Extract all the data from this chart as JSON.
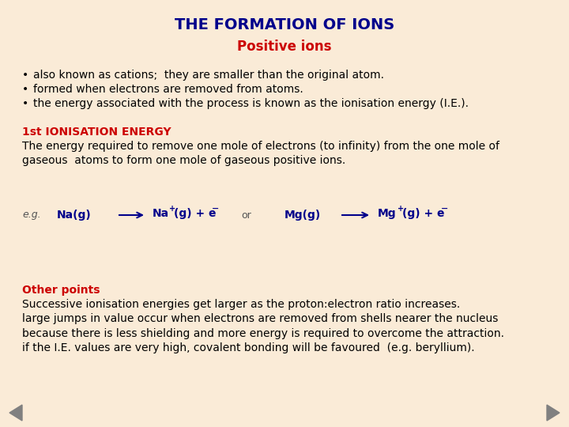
{
  "bg_color": "#faebd7",
  "title": "THE FORMATION OF IONS",
  "title_color": "#00008B",
  "title_fontsize": 14,
  "subtitle": "Positive ions",
  "subtitle_color": "#CC0000",
  "subtitle_fontsize": 12,
  "bullets": [
    "also known as cations;  they are smaller than the original atom.",
    "formed when electrons are removed from atoms.",
    "the energy associated with the process is known as the ionisation energy (I.E.)."
  ],
  "bullet_color": "#000000",
  "bullet_fontsize": 10,
  "section1_title": "1st IONISATION ENERGY",
  "section1_title_color": "#CC0000",
  "section1_body": "The energy required to remove one mole of electrons (to infinity) from the one mole of\ngaseous  atoms to form one mole of gaseous positive ions.",
  "section1_body_color": "#000000",
  "section2_title": "Other points",
  "section2_title_color": "#CC0000",
  "section2_body": "Successive ionisation energies get larger as the proton:electron ratio increases.\nlarge jumps in value occur when electrons are removed from shells nearer the nucleus\nbecause there is less shielding and more energy is required to overcome the attraction.\nif the I.E. values are very high, covalent bonding will be favoured  (e.g. beryllium).",
  "section2_body_color": "#000000",
  "body_fontsize": 10,
  "eq_fontsize": 10,
  "nav_color": "#808080",
  "arrow_color": "#00008B",
  "eg_color": "#555555"
}
